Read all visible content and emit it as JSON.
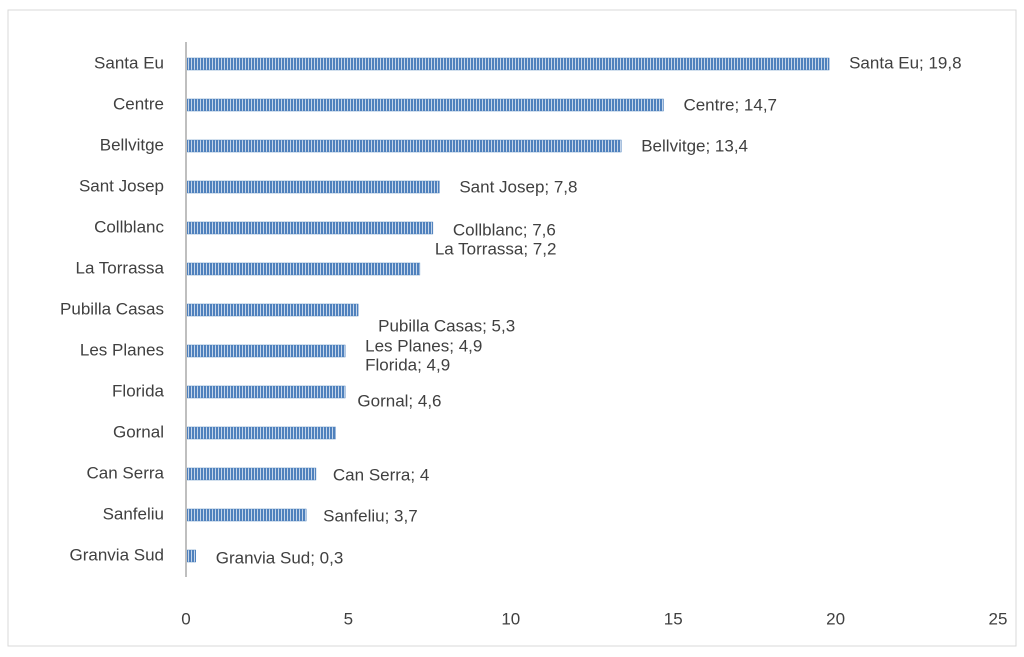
{
  "chart_data": {
    "type": "bar",
    "orientation": "horizontal",
    "categories": [
      "Santa Eu",
      "Centre",
      "Bellvitge",
      "Sant Josep",
      "Collblanc",
      "La Torrassa",
      "Pubilla Casas",
      "Les Planes",
      "Florida",
      "Gornal",
      "Can Serra",
      "Sanfeliu",
      "Granvia Sud"
    ],
    "values": [
      19.8,
      14.7,
      13.4,
      7.8,
      7.6,
      7.2,
      5.3,
      4.9,
      4.9,
      4.6,
      4,
      3.7,
      0.3
    ],
    "value_labels": [
      "Santa Eu; 19,8",
      "Centre; 14,7",
      "Bellvitge; 13,4",
      "Sant Josep; 7,8",
      "Collblanc; 7,6",
      "La Torrassa; 7,2",
      "Pubilla Casas; 5,3",
      "Les Planes; 4,9",
      "Florida; 4,9",
      "Gornal; 4,6",
      "Can Serra; 4",
      "Sanfeliu; 3,7",
      "Granvia Sud; 0,3"
    ],
    "color": "#4f81bd",
    "xlim": [
      0,
      25
    ],
    "xticks": [
      0,
      5,
      10,
      15,
      20,
      25
    ],
    "grid": false
  }
}
